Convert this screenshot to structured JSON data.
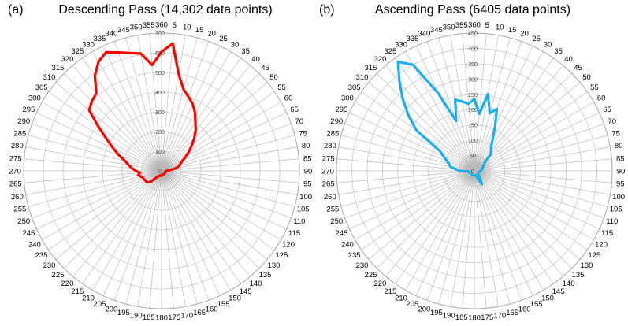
{
  "chart_data": [
    {
      "type": "radar",
      "panel_label": "(a)",
      "title": "Descending Pass (14,302 data points)",
      "color": "#ff0000",
      "angles": [
        0,
        5,
        10,
        15,
        20,
        25,
        30,
        35,
        40,
        45,
        50,
        55,
        60,
        65,
        70,
        75,
        80,
        85,
        90,
        95,
        100,
        105,
        110,
        115,
        120,
        125,
        130,
        135,
        140,
        145,
        150,
        155,
        160,
        165,
        170,
        175,
        180,
        185,
        190,
        195,
        200,
        205,
        210,
        215,
        220,
        225,
        230,
        235,
        240,
        245,
        250,
        255,
        260,
        265,
        270,
        275,
        280,
        285,
        290,
        295,
        300,
        305,
        310,
        315,
        320,
        325,
        330,
        335,
        340,
        345,
        350,
        355
      ],
      "values": [
        605,
        650,
        500,
        430,
        400,
        375,
        340,
        300,
        270,
        235,
        200,
        170,
        140,
        115,
        100,
        90,
        70,
        40,
        25,
        20,
        20,
        20,
        20,
        20,
        20,
        20,
        20,
        20,
        20,
        20,
        20,
        20,
        20,
        20,
        20,
        20,
        25,
        25,
        25,
        25,
        25,
        30,
        30,
        35,
        50,
        80,
        90,
        95,
        95,
        100,
        100,
        110,
        120,
        110,
        130,
        150,
        170,
        190,
        230,
        270,
        320,
        390,
        480,
        500,
        515,
        590,
        640,
        665,
        640,
        620,
        605,
        540
      ],
      "r_ticks": [
        0,
        100,
        200,
        300,
        400,
        500,
        600,
        700
      ],
      "rlim": [
        0,
        700
      ]
    },
    {
      "type": "radar",
      "panel_label": "(b)",
      "title": "Ascending Pass (6405 data points)",
      "color": "#1aaeea",
      "angles": [
        0,
        5,
        10,
        15,
        20,
        25,
        30,
        35,
        40,
        45,
        50,
        55,
        60,
        65,
        70,
        75,
        80,
        85,
        90,
        95,
        100,
        105,
        110,
        115,
        120,
        125,
        130,
        135,
        140,
        145,
        150,
        155,
        160,
        165,
        170,
        175,
        180,
        185,
        190,
        195,
        200,
        205,
        210,
        215,
        220,
        225,
        230,
        235,
        240,
        245,
        250,
        255,
        260,
        265,
        270,
        275,
        280,
        285,
        290,
        295,
        300,
        305,
        310,
        315,
        320,
        325,
        330,
        335,
        340,
        345,
        350,
        355
      ],
      "values": [
        235,
        187,
        255,
        195,
        215,
        160,
        120,
        95,
        85,
        75,
        45,
        40,
        35,
        30,
        30,
        25,
        25,
        22,
        20,
        18,
        18,
        15,
        15,
        15,
        15,
        15,
        15,
        20,
        25,
        35,
        50,
        30,
        20,
        15,
        15,
        15,
        15,
        15,
        15,
        15,
        15,
        15,
        15,
        15,
        15,
        15,
        15,
        15,
        15,
        15,
        15,
        15,
        18,
        20,
        50,
        60,
        80,
        85,
        95,
        110,
        130,
        230,
        280,
        330,
        380,
        435,
        400,
        280,
        173,
        241,
        230,
        220
      ],
      "r_ticks": [
        0,
        50,
        100,
        150,
        200,
        250,
        300,
        350,
        400,
        450
      ],
      "rlim": [
        0,
        450
      ]
    }
  ]
}
